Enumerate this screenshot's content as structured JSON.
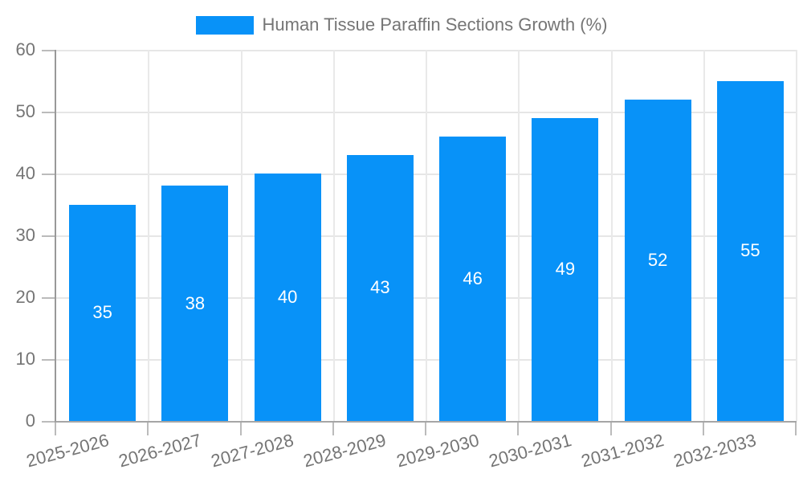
{
  "chart_data": {
    "type": "bar",
    "title": "Human Tissue Paraffin Sections Growth (%)",
    "categories": [
      "2025-2026",
      "2026-2027",
      "2027-2028",
      "2028-2029",
      "2029-2030",
      "2030-2031",
      "2031-2032",
      "2032-2033"
    ],
    "values": [
      35,
      38,
      40,
      43,
      46,
      49,
      52,
      55
    ],
    "xlabel": "",
    "ylabel": "",
    "ylim": [
      0,
      60
    ],
    "yticks": [
      0,
      10,
      20,
      30,
      40,
      50,
      60
    ],
    "grid": true,
    "legend_position": "top",
    "x_label_rotation_deg": -15,
    "value_labels_shown": true
  },
  "legend": {
    "label": "Human Tissue Paraffin Sections Growth (%)"
  },
  "colors": {
    "bar": "#0892f8",
    "value_label": "#ffffff",
    "axis_text": "#757575",
    "grid_line": "#e6e6e6",
    "axis_line": "#999999",
    "tick": "#bbbbbb",
    "background": "#ffffff"
  }
}
